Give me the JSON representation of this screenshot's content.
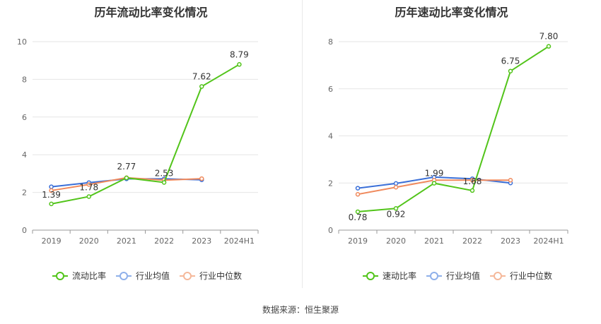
{
  "source": "数据来源：恒生聚源",
  "chart_data": [
    {
      "type": "line",
      "title": "历年流动比率变化情况",
      "categories": [
        "2019",
        "2020",
        "2021",
        "2022",
        "2023",
        "2024H1"
      ],
      "ylim": [
        0,
        10
      ],
      "yticks": [
        0,
        2,
        4,
        6,
        8,
        10
      ],
      "grid": true,
      "legend_position": "bottom",
      "series": [
        {
          "name": "流动比率",
          "color": "#52c41a",
          "values": [
            1.39,
            1.78,
            2.77,
            2.53,
            7.62,
            8.79
          ],
          "labels": [
            "1.39",
            "1.78",
            "2.77",
            "2.53",
            "7.62",
            "8.79"
          ]
        },
        {
          "name": "行业均值",
          "color": "#3a6fd8",
          "values": [
            2.3,
            2.52,
            2.72,
            2.72,
            2.67,
            null
          ]
        },
        {
          "name": "行业中位数",
          "color": "#f08a5d",
          "values": [
            2.1,
            2.42,
            2.78,
            2.65,
            2.73,
            null
          ]
        }
      ]
    },
    {
      "type": "line",
      "title": "历年速动比率变化情况",
      "categories": [
        "2019",
        "2020",
        "2021",
        "2022",
        "2023",
        "2024H1"
      ],
      "ylim": [
        0,
        8
      ],
      "yticks": [
        0,
        2,
        4,
        6,
        8
      ],
      "grid": true,
      "legend_position": "bottom",
      "series": [
        {
          "name": "速动比率",
          "color": "#52c41a",
          "values": [
            0.78,
            0.92,
            1.99,
            1.68,
            6.75,
            7.8
          ],
          "labels": [
            "0.78",
            "0.92",
            "1.99",
            "1.68",
            "6.75",
            "7.80"
          ]
        },
        {
          "name": "行业均值",
          "color": "#3a6fd8",
          "values": [
            1.78,
            1.98,
            2.25,
            2.18,
            2.0,
            null
          ]
        },
        {
          "name": "行业中位数",
          "color": "#f08a5d",
          "values": [
            1.52,
            1.82,
            2.12,
            2.12,
            2.12,
            null
          ]
        }
      ]
    }
  ]
}
